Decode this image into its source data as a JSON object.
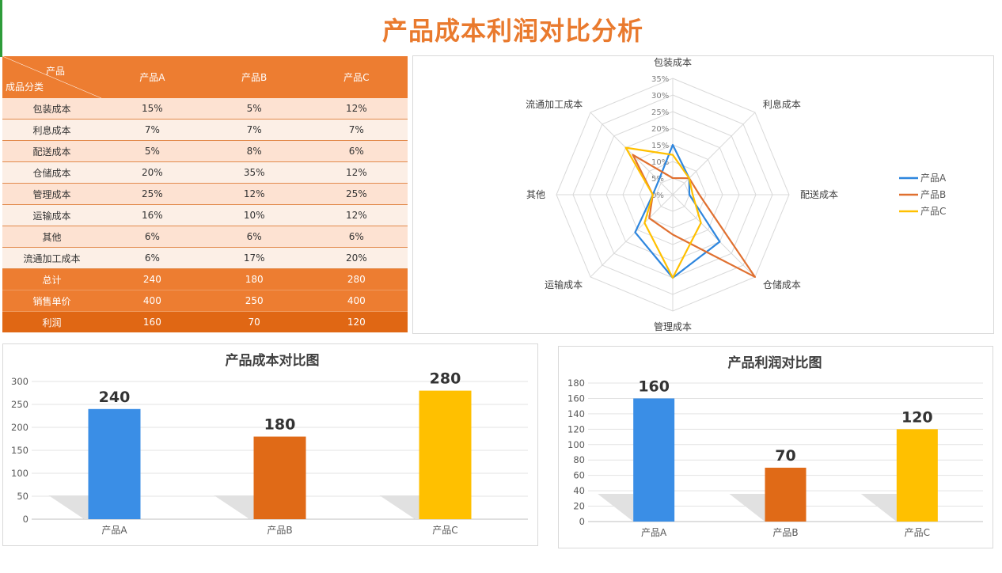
{
  "title": "产品成本利润对比分析",
  "table": {
    "corner_top": "产品",
    "corner_bottom": "成品分类",
    "products": [
      "产品A",
      "产品B",
      "产品C"
    ],
    "rows": [
      {
        "label": "包装成本",
        "values": [
          "15%",
          "5%",
          "12%"
        ]
      },
      {
        "label": "利息成本",
        "values": [
          "7%",
          "7%",
          "7%"
        ]
      },
      {
        "label": "配送成本",
        "values": [
          "5%",
          "8%",
          "6%"
        ]
      },
      {
        "label": "仓储成本",
        "values": [
          "20%",
          "35%",
          "12%"
        ]
      },
      {
        "label": "管理成本",
        "values": [
          "25%",
          "12%",
          "25%"
        ]
      },
      {
        "label": "运输成本",
        "values": [
          "16%",
          "10%",
          "12%"
        ]
      },
      {
        "label": "其他",
        "values": [
          "6%",
          "6%",
          "6%"
        ]
      },
      {
        "label": "流通加工成本",
        "values": [
          "6%",
          "17%",
          "20%"
        ]
      }
    ],
    "summary": [
      {
        "label": "总计",
        "values": [
          "240",
          "180",
          "280"
        ]
      },
      {
        "label": "销售单价",
        "values": [
          "400",
          "250",
          "400"
        ]
      },
      {
        "label": "利润",
        "values": [
          "160",
          "70",
          "120"
        ]
      }
    ]
  },
  "chart_data": [
    {
      "type": "radar",
      "axes": [
        "包装成本",
        "利息成本",
        "配送成本",
        "仓储成本",
        "管理成本",
        "运输成本",
        "其他",
        "流通加工成本"
      ],
      "ticks": [
        "0%",
        "5%",
        "10%",
        "15%",
        "20%",
        "25%",
        "30%",
        "35%"
      ],
      "rmax": 35,
      "series": [
        {
          "name": "产品A",
          "values": [
            15,
            7,
            5,
            20,
            25,
            16,
            6,
            6
          ],
          "color": "#2e86de"
        },
        {
          "name": "产品B",
          "values": [
            5,
            7,
            8,
            35,
            12,
            10,
            6,
            17
          ],
          "color": "#e07030"
        },
        {
          "name": "产品C",
          "values": [
            12,
            7,
            6,
            12,
            25,
            12,
            6,
            20
          ],
          "color": "#ffc000"
        }
      ],
      "legend": "right"
    },
    {
      "type": "bar",
      "title": "产品成本对比图",
      "categories": [
        "产品A",
        "产品B",
        "产品C"
      ],
      "values": [
        240,
        180,
        280
      ],
      "labels": [
        "240",
        "180",
        "280"
      ],
      "ticks": [
        "0",
        "50",
        "100",
        "150",
        "200",
        "250",
        "300"
      ],
      "ylim": [
        0,
        300
      ],
      "colors": [
        "#3a8ee6",
        "#e06a17",
        "#ffc000"
      ],
      "grid": true
    },
    {
      "type": "bar",
      "title": "产品利润对比图",
      "categories": [
        "产品A",
        "产品B",
        "产品C"
      ],
      "values": [
        160,
        70,
        120
      ],
      "labels": [
        "160",
        "70",
        "120"
      ],
      "ticks": [
        "0",
        "20",
        "40",
        "60",
        "80",
        "100",
        "120",
        "140",
        "160",
        "180"
      ],
      "ylim": [
        0,
        180
      ],
      "colors": [
        "#3a8ee6",
        "#e06a17",
        "#ffc000"
      ],
      "grid": true
    }
  ]
}
